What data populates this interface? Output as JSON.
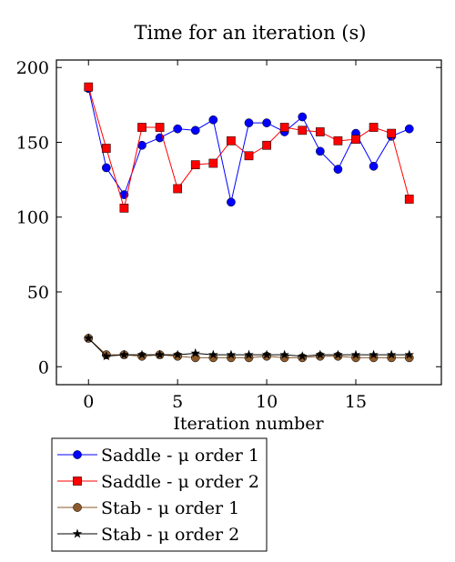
{
  "chart_data": {
    "type": "line",
    "title": "Time for an iteration (s)",
    "xlabel": "Iteration number",
    "ylabel": "",
    "xlim": [
      -1.8,
      19.8
    ],
    "ylim": [
      -12,
      205
    ],
    "xticks": [
      0,
      5,
      10,
      15
    ],
    "yticks": [
      0,
      50,
      100,
      150,
      200
    ],
    "grid": false,
    "legend_position": "below-left",
    "x": [
      0,
      1,
      2,
      3,
      4,
      5,
      6,
      7,
      8,
      9,
      10,
      11,
      12,
      13,
      14,
      15,
      16,
      17,
      18
    ],
    "series": [
      {
        "name": "Saddle - μ order 1",
        "color": "#0000ff",
        "marker": "circle",
        "values": [
          186,
          133,
          115,
          148,
          153,
          159,
          158,
          165,
          110,
          163,
          163,
          157,
          167,
          144,
          132,
          156,
          134,
          154,
          159
        ]
      },
      {
        "name": "Saddle - μ order 2",
        "color": "#ff0000",
        "marker": "square",
        "values": [
          187,
          146,
          106,
          160,
          160,
          119,
          135,
          136,
          151,
          141,
          148,
          160,
          158,
          157,
          151,
          152,
          160,
          156,
          112
        ]
      },
      {
        "name": "Stab - μ order 1",
        "color": "#8b5a2b",
        "marker": "circle",
        "values": [
          19,
          8,
          8,
          7,
          8,
          7,
          6,
          6,
          6,
          6,
          7,
          6,
          6,
          7,
          7,
          6,
          6,
          6,
          6
        ]
      },
      {
        "name": "Stab - μ order 2",
        "color": "#000000",
        "marker": "star",
        "values": [
          19,
          7,
          8,
          8,
          8,
          8,
          9,
          8,
          8,
          8,
          8,
          8,
          7,
          8,
          8,
          8,
          8,
          8,
          8
        ]
      }
    ]
  }
}
